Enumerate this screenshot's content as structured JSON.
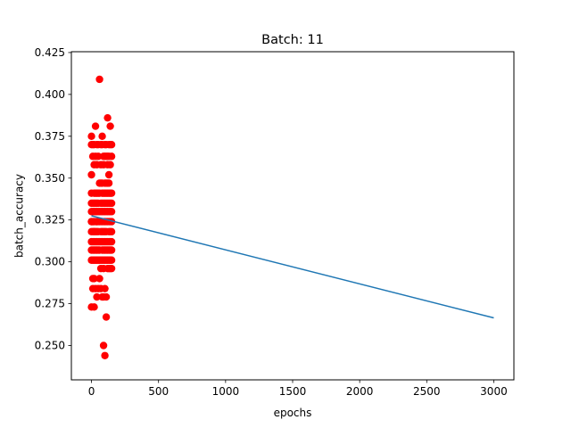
{
  "chart_data": {
    "type": "scatter",
    "title": "Batch: 11",
    "xlabel": "epochs",
    "ylabel": "batch_accuracy",
    "xlim": [
      -150,
      3150
    ],
    "ylim": [
      0.2295,
      0.4255
    ],
    "xticks": [
      0,
      500,
      1000,
      1500,
      2000,
      2500,
      3000
    ],
    "yticks": [
      0.25,
      0.275,
      0.3,
      0.325,
      0.35,
      0.375,
      0.4,
      0.425
    ],
    "xtick_labels": [
      "0",
      "500",
      "1000",
      "1500",
      "2000",
      "2500",
      "3000"
    ],
    "ytick_labels": [
      "0.250",
      "0.275",
      "0.300",
      "0.325",
      "0.350",
      "0.375",
      "0.400",
      "0.425"
    ],
    "grid": false,
    "colors": {
      "points": "#ff0000",
      "line": "#1f77b4"
    },
    "series": [
      {
        "kind": "scatter",
        "x": [
          0,
          0,
          0,
          0,
          0,
          0,
          0,
          0,
          0,
          0,
          0,
          0,
          0,
          10,
          10,
          10,
          10,
          10,
          10,
          10,
          10,
          10,
          10,
          10,
          10,
          20,
          20,
          20,
          20,
          20,
          20,
          20,
          20,
          20,
          20,
          20,
          20,
          20,
          30,
          30,
          30,
          30,
          30,
          30,
          30,
          30,
          30,
          30,
          30,
          40,
          40,
          40,
          40,
          40,
          40,
          40,
          40,
          40,
          40,
          40,
          40,
          50,
          50,
          50,
          50,
          50,
          50,
          50,
          50,
          50,
          50,
          50,
          60,
          60,
          60,
          60,
          60,
          60,
          60,
          60,
          60,
          70,
          70,
          70,
          70,
          70,
          70,
          70,
          70,
          70,
          70,
          70,
          80,
          80,
          80,
          80,
          80,
          80,
          80,
          80,
          80,
          80,
          80,
          80,
          90,
          90,
          90,
          90,
          90,
          90,
          90,
          90,
          90,
          90,
          90,
          90,
          90,
          100,
          100,
          100,
          100,
          100,
          100,
          100,
          100,
          100,
          100,
          100,
          100,
          100,
          110,
          110,
          110,
          110,
          110,
          110,
          110,
          110,
          110,
          110,
          110,
          110,
          110,
          120,
          120,
          120,
          120,
          120,
          120,
          120,
          120,
          120,
          120,
          120,
          120,
          130,
          130,
          130,
          130,
          130,
          130,
          130,
          130,
          130,
          130,
          130,
          130,
          130,
          140,
          140,
          140,
          140,
          140,
          140,
          140,
          140,
          140,
          140,
          140,
          140,
          150,
          150,
          150,
          150,
          150,
          150,
          150,
          150,
          150,
          150,
          150
        ],
        "y": [
          0.375,
          0.37,
          0.352,
          0.341,
          0.335,
          0.33,
          0.324,
          0.318,
          0.312,
          0.307,
          0.301,
          0.273,
          0.324,
          0.37,
          0.363,
          0.335,
          0.33,
          0.324,
          0.318,
          0.312,
          0.307,
          0.301,
          0.29,
          0.284,
          0.324,
          0.37,
          0.358,
          0.341,
          0.335,
          0.33,
          0.324,
          0.318,
          0.312,
          0.307,
          0.301,
          0.29,
          0.273,
          0.318,
          0.381,
          0.363,
          0.341,
          0.335,
          0.33,
          0.324,
          0.318,
          0.312,
          0.307,
          0.301,
          0.284,
          0.37,
          0.358,
          0.341,
          0.335,
          0.33,
          0.324,
          0.318,
          0.312,
          0.307,
          0.301,
          0.279,
          0.324,
          0.37,
          0.363,
          0.341,
          0.335,
          0.33,
          0.324,
          0.318,
          0.312,
          0.307,
          0.301,
          0.284,
          0.409,
          0.347,
          0.341,
          0.33,
          0.324,
          0.312,
          0.307,
          0.301,
          0.29,
          0.37,
          0.358,
          0.347,
          0.335,
          0.33,
          0.324,
          0.318,
          0.312,
          0.301,
          0.296,
          0.284,
          0.375,
          0.37,
          0.347,
          0.341,
          0.335,
          0.33,
          0.324,
          0.318,
          0.312,
          0.307,
          0.301,
          0.279,
          0.363,
          0.358,
          0.341,
          0.335,
          0.33,
          0.324,
          0.318,
          0.312,
          0.307,
          0.301,
          0.296,
          0.279,
          0.25,
          0.37,
          0.363,
          0.347,
          0.341,
          0.335,
          0.33,
          0.324,
          0.318,
          0.312,
          0.307,
          0.301,
          0.284,
          0.244,
          0.37,
          0.363,
          0.347,
          0.341,
          0.335,
          0.33,
          0.324,
          0.318,
          0.312,
          0.307,
          0.301,
          0.279,
          0.267,
          0.386,
          0.363,
          0.358,
          0.347,
          0.341,
          0.335,
          0.33,
          0.324,
          0.312,
          0.307,
          0.301,
          0.296,
          0.37,
          0.363,
          0.352,
          0.347,
          0.341,
          0.335,
          0.33,
          0.324,
          0.318,
          0.312,
          0.307,
          0.301,
          0.296,
          0.381,
          0.37,
          0.358,
          0.341,
          0.335,
          0.33,
          0.324,
          0.318,
          0.312,
          0.307,
          0.301,
          0.296,
          0.37,
          0.363,
          0.341,
          0.335,
          0.33,
          0.324,
          0.318,
          0.312,
          0.307,
          0.301,
          0.296
        ]
      },
      {
        "kind": "line",
        "x": [
          0,
          3000
        ],
        "y": [
          0.3275,
          0.2665
        ]
      }
    ]
  }
}
